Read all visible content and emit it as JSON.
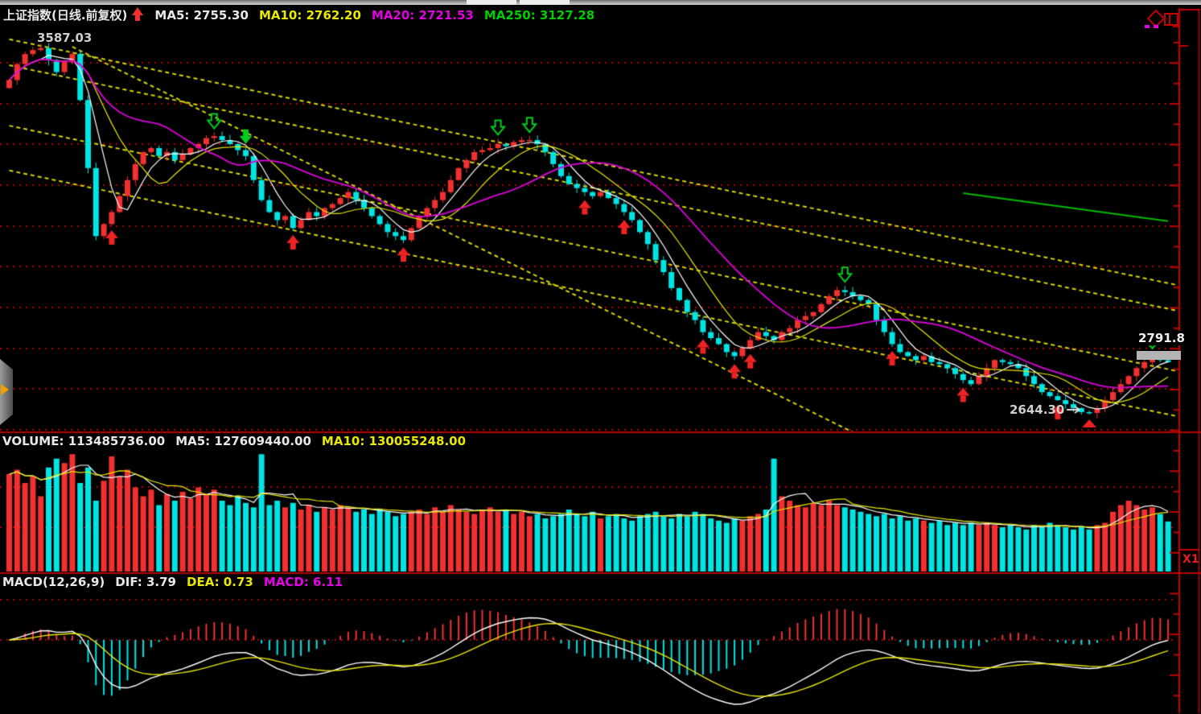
{
  "main_header": {
    "title": "上证指数(日线.前复权)",
    "signal_icon": "buy-up-arrow",
    "items": [
      {
        "text": "MA5: 2755.30",
        "color": "#e8e8e8"
      },
      {
        "text": "MA10: 2762.20",
        "color": "#e8e800"
      },
      {
        "text": "MA20: 2721.53",
        "color": "#e000e0"
      },
      {
        "text": "MA250: 3127.28",
        "color": "#00cc00"
      }
    ]
  },
  "volume_header": {
    "title": "VOLUME: 113485736.00",
    "items": [
      {
        "text": "MA5: 127609440.00",
        "color": "#e8e8e8"
      },
      {
        "text": "MA10: 130055248.00",
        "color": "#e8e800"
      }
    ]
  },
  "macd_header": {
    "title": "MACD(12,26,9)",
    "items": [
      {
        "text": "DIF: 3.79",
        "color": "#e8e8e8"
      },
      {
        "text": "DEA: 0.73",
        "color": "#e8e800"
      },
      {
        "text": "MACD: 6.11",
        "color": "#e800e8"
      }
    ]
  },
  "annotations": {
    "high_label": "3587.03",
    "low_label": "2644.30",
    "current_price": "2791.8",
    "zoom_scale": "X1"
  },
  "colors": {
    "up": "#f23030",
    "down": "#00e4e4",
    "ma5": "#ffffff",
    "ma10": "#e8e800",
    "ma20": "#dd00dd",
    "ma250": "#00bb00",
    "grid": "#b00000",
    "axis": "#c40000",
    "divider": "#b00000",
    "trendline": "#d6d600",
    "marker_buy": "#ee2222",
    "marker_sell": "#00cc22",
    "price_marker_bar": "#b4b4b4",
    "arrow_annotation": "#e0e0e0"
  },
  "chart_data": [
    {
      "type": "candlestick",
      "title": "上证指数(日线.前复权)",
      "ylim": [
        2600,
        3660
      ],
      "x_count": 148,
      "close": [
        3480,
        3520,
        3545,
        3555,
        3560,
        3530,
        3500,
        3525,
        3545,
        3430,
        3260,
        3090,
        3120,
        3150,
        3190,
        3230,
        3270,
        3300,
        3310,
        3290,
        3300,
        3280,
        3295,
        3310,
        3320,
        3335,
        3340,
        3330,
        3320,
        3305,
        3290,
        3230,
        3180,
        3150,
        3130,
        3140,
        3110,
        3130,
        3150,
        3140,
        3160,
        3170,
        3185,
        3200,
        3180,
        3160,
        3140,
        3120,
        3100,
        3090,
        3080,
        3110,
        3140,
        3160,
        3180,
        3200,
        3230,
        3260,
        3280,
        3300,
        3305,
        3310,
        3320,
        3315,
        3325,
        3330,
        3330,
        3320,
        3300,
        3270,
        3240,
        3220,
        3210,
        3200,
        3190,
        3200,
        3185,
        3170,
        3150,
        3130,
        3100,
        3070,
        3030,
        3000,
        2960,
        2930,
        2900,
        2880,
        2850,
        2835,
        2820,
        2800,
        2790,
        2810,
        2830,
        2850,
        2840,
        2830,
        2850,
        2860,
        2880,
        2890,
        2900,
        2920,
        2940,
        2955,
        2950,
        2940,
        2930,
        2920,
        2880,
        2850,
        2820,
        2800,
        2790,
        2780,
        2790,
        2775,
        2770,
        2760,
        2745,
        2730,
        2720,
        2740,
        2760,
        2780,
        2775,
        2770,
        2760,
        2740,
        2720,
        2700,
        2690,
        2680,
        2670,
        2660,
        2650,
        2648,
        2660,
        2680,
        2700,
        2720,
        2740,
        2760,
        2775,
        2790,
        2780,
        2775
      ],
      "ma_periods": [
        5,
        10,
        20
      ],
      "ma_latest": {
        "MA5": 2755.3,
        "MA10": 2762.2,
        "MA20": 2721.53,
        "MA250": 3127.28
      },
      "ma250_segment": {
        "from": [
          121,
          3197
        ],
        "to": [
          147,
          3127.28
        ]
      },
      "trendlines": [
        {
          "from": [
            0,
            3582
          ],
          "to": [
            149,
            2964
          ]
        },
        {
          "from": [
            0,
            3517
          ],
          "to": [
            149,
            2900
          ]
        },
        {
          "from": [
            0,
            3366
          ],
          "to": [
            149,
            2749
          ]
        },
        {
          "from": [
            0,
            3254
          ],
          "to": [
            149,
            2636
          ]
        },
        {
          "from": [
            8,
            3563
          ],
          "to": [
            107,
            2600
          ]
        }
      ],
      "signals": {
        "buy": [
          13,
          36,
          50,
          73,
          78,
          88,
          92,
          94,
          112,
          121,
          133
        ],
        "sell_hollow": [
          26,
          62,
          66,
          106,
          145
        ],
        "sell_solid": [
          30
        ],
        "bottom_triangle": [
          137
        ]
      },
      "high_marker": {
        "index": 4,
        "label": "3587.03"
      },
      "low_marker": {
        "index": 137,
        "label": "2644.30"
      },
      "last_price_label": "2791.8"
    },
    {
      "type": "bar",
      "title": "VOLUME",
      "unit": "x1e6",
      "latest": {
        "VOLUME": 113485736.0,
        "MA5": 127609440.0,
        "MA10": 130055248.0
      },
      "values": [
        220,
        230,
        200,
        215,
        170,
        235,
        255,
        245,
        265,
        200,
        235,
        160,
        205,
        260,
        215,
        230,
        190,
        170,
        185,
        150,
        175,
        160,
        180,
        165,
        190,
        175,
        185,
        160,
        150,
        170,
        155,
        145,
        265,
        150,
        160,
        145,
        155,
        140,
        150,
        135,
        145,
        140,
        150,
        145,
        135,
        140,
        130,
        140,
        135,
        125,
        130,
        135,
        140,
        130,
        145,
        135,
        150,
        140,
        135,
        130,
        140,
        145,
        135,
        140,
        130,
        135,
        125,
        130,
        120,
        125,
        130,
        140,
        130,
        125,
        135,
        120,
        125,
        130,
        120,
        115,
        125,
        130,
        135,
        125,
        120,
        130,
        125,
        135,
        130,
        120,
        115,
        110,
        120,
        115,
        125,
        130,
        140,
        255,
        170,
        160,
        150,
        145,
        155,
        150,
        160,
        150,
        145,
        140,
        135,
        130,
        125,
        130,
        120,
        125,
        115,
        120,
        115,
        110,
        115,
        105,
        110,
        105,
        110,
        105,
        110,
        105,
        100,
        105,
        100,
        95,
        105,
        100,
        110,
        105,
        100,
        95,
        100,
        95,
        105,
        110,
        135,
        150,
        160,
        150,
        140,
        145,
        130,
        113
      ]
    },
    {
      "type": "macd",
      "title": "MACD(12,26,9)",
      "params": [
        12,
        26,
        9
      ],
      "source": "close series of pane 1",
      "latest": {
        "DIF": 3.79,
        "DEA": 0.73,
        "MACD": 6.11
      }
    }
  ]
}
